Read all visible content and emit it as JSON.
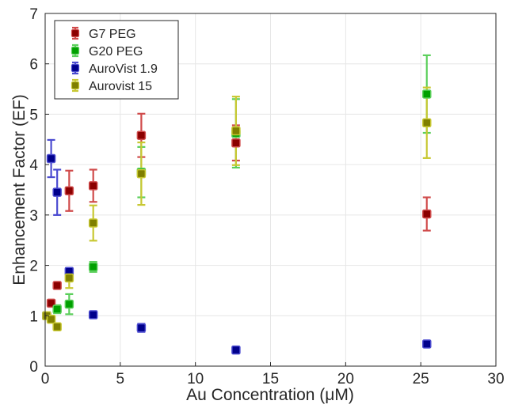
{
  "chart_data": {
    "type": "scatter",
    "title": "",
    "xlabel": "Au Concentration (μM)",
    "ylabel": "Enhancement Factor (EF)",
    "xlim": [
      0,
      30
    ],
    "ylim": [
      0,
      7
    ],
    "xticks": [
      0,
      5,
      10,
      15,
      20,
      25,
      30
    ],
    "yticks": [
      0,
      1,
      2,
      3,
      4,
      5,
      6,
      7
    ],
    "grid": true,
    "legend_position": "top-left",
    "error_bars": true,
    "series": [
      {
        "name": "G7 PEG",
        "color": "#8b0000",
        "bar_color": "#d04b4b",
        "points": [
          {
            "x": 0.1,
            "y": 1.0,
            "err": 0.03
          },
          {
            "x": 0.4,
            "y": 1.25,
            "err": 0.05
          },
          {
            "x": 0.8,
            "y": 1.6,
            "err": 0.05
          },
          {
            "x": 1.6,
            "y": 3.48,
            "err": 0.4
          },
          {
            "x": 3.2,
            "y": 3.58,
            "err": 0.32
          },
          {
            "x": 6.4,
            "y": 4.58,
            "err": 0.43
          },
          {
            "x": 12.7,
            "y": 4.43,
            "err": 0.35
          },
          {
            "x": 25.4,
            "y": 3.02,
            "err": 0.33
          }
        ]
      },
      {
        "name": "G20 PEG",
        "color": "#00a000",
        "bar_color": "#5bcf5b",
        "points": [
          {
            "x": 0.1,
            "y": 1.0,
            "err": 0.03
          },
          {
            "x": 0.8,
            "y": 1.13,
            "err": 0.08
          },
          {
            "x": 1.6,
            "y": 1.23,
            "err": 0.2
          },
          {
            "x": 3.2,
            "y": 1.97,
            "err": 0.1
          },
          {
            "x": 6.4,
            "y": 3.85,
            "err": 0.5
          },
          {
            "x": 12.7,
            "y": 4.62,
            "err": 0.68
          },
          {
            "x": 25.4,
            "y": 5.4,
            "err": 0.77
          }
        ]
      },
      {
        "name": "AuroVist 1.9",
        "color": "#00008b",
        "bar_color": "#4b4bd0",
        "points": [
          {
            "x": 0.1,
            "y": 1.0,
            "err": 0.03
          },
          {
            "x": 0.4,
            "y": 4.12,
            "err": 0.37
          },
          {
            "x": 0.8,
            "y": 3.45,
            "err": 0.45
          },
          {
            "x": 1.6,
            "y": 1.88,
            "err": 0.06
          },
          {
            "x": 3.2,
            "y": 1.02,
            "err": 0.07
          },
          {
            "x": 6.4,
            "y": 0.76,
            "err": 0.08
          },
          {
            "x": 12.7,
            "y": 0.32,
            "err": 0.04
          },
          {
            "x": 25.4,
            "y": 0.44,
            "err": 0.05
          }
        ]
      },
      {
        "name": "Aurovist 15",
        "color": "#7f7f00",
        "bar_color": "#c8c832",
        "points": [
          {
            "x": 0.1,
            "y": 1.0,
            "err": 0.05
          },
          {
            "x": 0.4,
            "y": 0.93,
            "err": 0.05
          },
          {
            "x": 0.8,
            "y": 0.78,
            "err": 0.05
          },
          {
            "x": 1.6,
            "y": 1.75,
            "err": 0.2
          },
          {
            "x": 3.2,
            "y": 2.84,
            "err": 0.35
          },
          {
            "x": 6.4,
            "y": 3.82,
            "err": 0.62
          },
          {
            "x": 12.7,
            "y": 4.67,
            "err": 0.68
          },
          {
            "x": 25.4,
            "y": 4.83,
            "err": 0.7
          }
        ]
      }
    ]
  }
}
